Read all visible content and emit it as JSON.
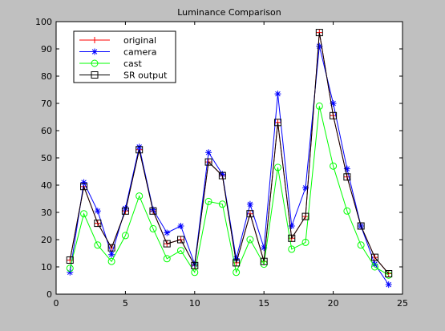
{
  "chart_data": {
    "type": "line",
    "title": "Luminance Comparison",
    "xlabel": "",
    "ylabel": "",
    "xlim": [
      0,
      25
    ],
    "ylim": [
      0,
      100
    ],
    "xticks": [
      0,
      5,
      10,
      15,
      20,
      25
    ],
    "yticks": [
      0,
      10,
      20,
      30,
      40,
      50,
      60,
      70,
      80,
      90,
      100
    ],
    "grid": false,
    "legend_position": "top-left",
    "x": [
      1,
      2,
      3,
      4,
      5,
      6,
      7,
      8,
      9,
      10,
      11,
      12,
      13,
      14,
      15,
      16,
      17,
      18,
      19,
      20,
      21,
      22,
      23,
      24
    ],
    "series": [
      {
        "name": "original",
        "color": "#ff0000",
        "marker": "plus",
        "values": [
          12.5,
          39.5,
          26,
          17,
          30.5,
          53,
          30.5,
          18.5,
          20,
          10.5,
          48.5,
          43.5,
          11.5,
          29.5,
          12,
          63,
          20.5,
          28.5,
          96,
          65.5,
          43,
          25,
          13.5,
          7.5
        ]
      },
      {
        "name": "camera",
        "color": "#0000ff",
        "marker": "star",
        "values": [
          8,
          41,
          30.5,
          14.5,
          31.5,
          54,
          31,
          22.5,
          25,
          11,
          52,
          44,
          13,
          33,
          17,
          73.5,
          25,
          39,
          91,
          70,
          46,
          25,
          11,
          3.5
        ]
      },
      {
        "name": "cast",
        "color": "#00ff00",
        "marker": "circle",
        "values": [
          9.5,
          29.5,
          18,
          12,
          21.5,
          36,
          24,
          13,
          16,
          8,
          34,
          33,
          8,
          20,
          11,
          46.5,
          16.5,
          19,
          69,
          47,
          30.5,
          18,
          10,
          7
        ]
      },
      {
        "name": "SR output",
        "color": "#000000",
        "marker": "square",
        "values": [
          12.5,
          39.5,
          26,
          17,
          30.5,
          53,
          30.5,
          18.5,
          20,
          10.5,
          48.5,
          43.5,
          11.5,
          29.5,
          12,
          63,
          20.5,
          28.5,
          96,
          65.5,
          43,
          25,
          13.5,
          7.5
        ]
      }
    ]
  }
}
